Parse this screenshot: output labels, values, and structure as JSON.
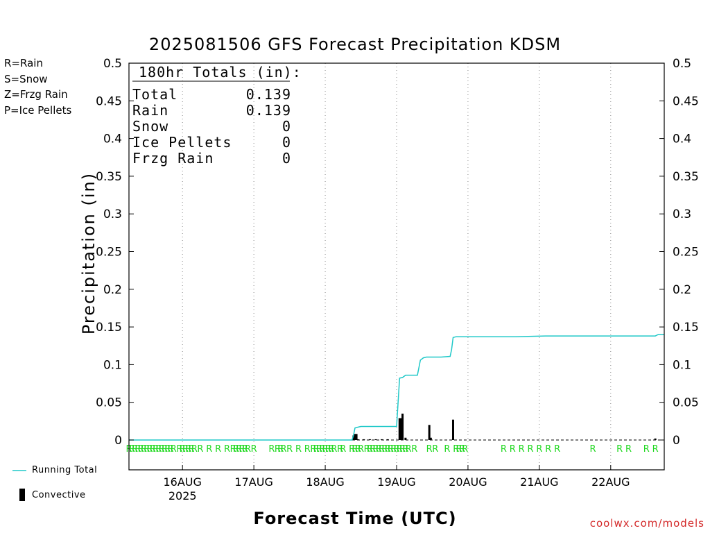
{
  "title": "2025081506 GFS Forecast Precipitation KDSM",
  "ptype_legend": [
    {
      "label": "R=Rain",
      "color": "#1fd81f"
    },
    {
      "label": "S=Snow",
      "color": "#3c3cf0"
    },
    {
      "label": "Z=Frzg Rain",
      "color": "#f08c3c"
    },
    {
      "label": "P=Ice Pellets",
      "color": "#e01e8c"
    }
  ],
  "totals": {
    "header": "180hr Totals (in):",
    "rows": [
      {
        "label": "Total",
        "value": "0.139"
      },
      {
        "label": "Rain",
        "value": "0.139"
      },
      {
        "label": "Snow",
        "value": "0"
      },
      {
        "label": "Ice Pellets",
        "value": "0"
      },
      {
        "label": "Frzg Rain",
        "value": "0"
      }
    ]
  },
  "key": {
    "running_total": "Running Total",
    "convective": "Convective"
  },
  "credit": "coolwx.com/models",
  "colors": {
    "running_total": "#1ec8c8",
    "bars": "#000000",
    "bar_inner": "#1a7a1a",
    "rain_marker": "#1fd81f"
  },
  "chart_data": {
    "type": "bar",
    "title": "2025081506 GFS Forecast Precipitation KDSM",
    "xlabel": "Forecast Time (UTC)",
    "ylabel": "Precipitation (in)",
    "ylim": [
      0,
      0.5
    ],
    "xlim_hours": [
      0,
      180
    ],
    "yticks": [
      "0",
      "0.05",
      "0.1",
      "0.15",
      "0.2",
      "0.25",
      "0.3",
      "0.35",
      "0.4",
      "0.45",
      "0.5"
    ],
    "xticks": [
      {
        "hour": 18,
        "label": "16AUG",
        "sublabel": "2025"
      },
      {
        "hour": 42,
        "label": "17AUG"
      },
      {
        "hour": 66,
        "label": "18AUG"
      },
      {
        "hour": 90,
        "label": "19AUG"
      },
      {
        "hour": 114,
        "label": "20AUG"
      },
      {
        "hour": 138,
        "label": "21AUG"
      },
      {
        "hour": 162,
        "label": "22AUG"
      }
    ],
    "grid": "vertical dotted",
    "series": [
      {
        "name": "Running Total",
        "type": "line",
        "points": [
          [
            0,
            0
          ],
          [
            75,
            0
          ],
          [
            75.5,
            0.006
          ],
          [
            76,
            0.016
          ],
          [
            77,
            0.017
          ],
          [
            78,
            0.018
          ],
          [
            88,
            0.018
          ],
          [
            90,
            0.018
          ],
          [
            91,
            0.082
          ],
          [
            92,
            0.083
          ],
          [
            93,
            0.086
          ],
          [
            97,
            0.086
          ],
          [
            98,
            0.106
          ],
          [
            99,
            0.109
          ],
          [
            100,
            0.11
          ],
          [
            105,
            0.11
          ],
          [
            108,
            0.111
          ],
          [
            108.5,
            0.12
          ],
          [
            109,
            0.136
          ],
          [
            110,
            0.137
          ],
          [
            130,
            0.137
          ],
          [
            140,
            0.138
          ],
          [
            177,
            0.138
          ],
          [
            178,
            0.14
          ],
          [
            180,
            0.14
          ]
        ]
      },
      {
        "name": "Convective",
        "type": "bar",
        "points": [
          [
            75.5,
            0.006
          ],
          [
            76,
            0.008
          ],
          [
            76.5,
            0.008
          ],
          [
            77,
            0.001
          ],
          [
            79,
            0.001
          ],
          [
            81,
            0.001
          ],
          [
            83,
            0.001
          ],
          [
            85,
            0.001
          ],
          [
            87,
            0.001
          ],
          [
            91,
            0.029
          ],
          [
            91.5,
            0.029
          ],
          [
            92,
            0.035
          ],
          [
            93,
            0.003
          ],
          [
            101,
            0.02
          ],
          [
            101.5,
            0.003
          ],
          [
            109,
            0.027
          ],
          [
            177,
            0.002
          ]
        ]
      }
    ],
    "ptype_markers": {
      "label": "R",
      "hours": [
        0,
        1,
        2,
        3,
        4,
        5,
        6,
        7,
        8,
        9,
        10,
        11,
        12,
        13,
        14,
        15,
        17,
        18,
        19,
        20,
        21,
        22,
        24,
        27,
        30,
        33,
        35,
        36,
        37,
        38,
        39,
        40,
        42,
        48,
        50,
        51,
        52,
        54,
        57,
        60,
        62,
        63,
        64,
        65,
        66,
        67,
        68,
        69,
        71,
        72,
        75,
        76,
        77,
        78,
        80,
        81,
        82,
        83,
        84,
        85,
        86,
        87,
        88,
        89,
        90,
        91,
        92,
        93,
        94,
        96,
        101,
        103,
        107,
        110,
        111,
        112,
        113,
        126,
        129,
        132,
        135,
        138,
        141,
        144,
        156,
        165,
        168,
        174,
        177
      ]
    }
  }
}
